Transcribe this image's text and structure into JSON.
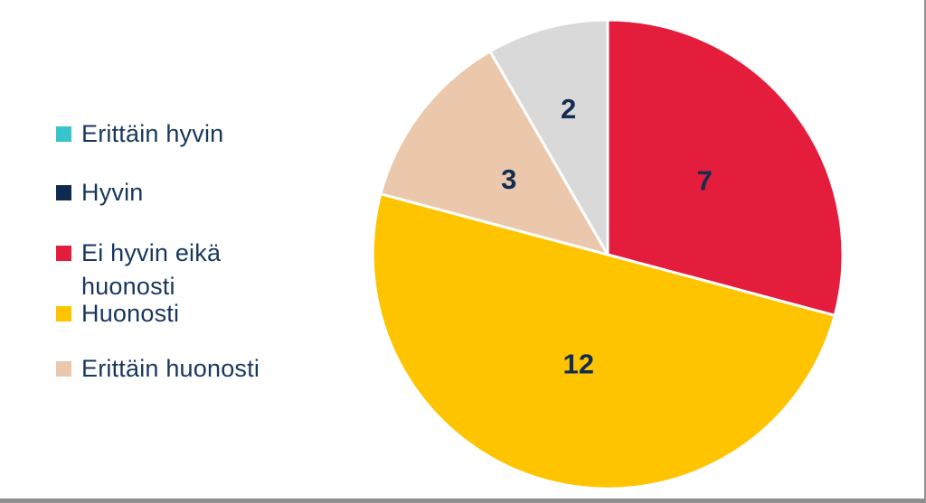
{
  "page": {
    "background": "#FFFFFF",
    "edge_color": "#8F8F8F"
  },
  "legend": {
    "text_color": "#17375E",
    "items": [
      {
        "label": "Erittäin hyvin",
        "color": "#38C4CB"
      },
      {
        "label": "Hyvin",
        "color": "#0E2A4E"
      },
      {
        "label": "Ei hyvin eikä huonosti",
        "color": "#E41D3D"
      },
      {
        "label": "Huonosti",
        "color": "#FFC400"
      },
      {
        "label": "Erittäin huonosti",
        "color": "#EBC8AB"
      }
    ]
  },
  "chart_data": {
    "type": "pie",
    "start_angle_deg": 0,
    "direction": "clockwise",
    "legend_position": "left",
    "slice_border_color": "#FFFFFF",
    "value_label_color": "#132C50",
    "slices": [
      {
        "label": "Ei hyvin eikä huonosti",
        "value": 7,
        "color": "#E41D3D",
        "label_radius": 0.52
      },
      {
        "label": "Huonosti",
        "value": 12,
        "color": "#FFC400",
        "label_radius": 0.48
      },
      {
        "label": "Erittäin huonosti",
        "value": 3,
        "color": "#EBC8AB",
        "label_radius": 0.53
      },
      {
        "label": "",
        "value": 2,
        "color": "#D9D9D9",
        "label_radius": 0.645
      }
    ]
  }
}
